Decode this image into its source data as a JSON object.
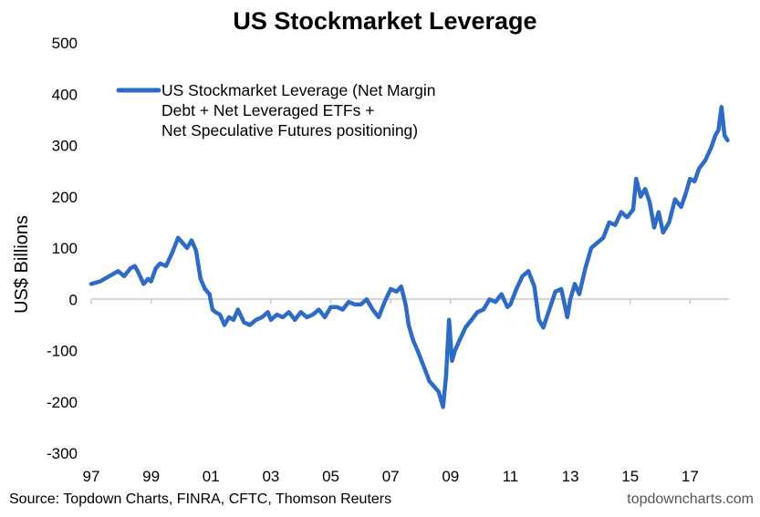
{
  "chart_data": {
    "type": "line",
    "title": "US Stockmarket Leverage",
    "ylabel": "US$ Billions",
    "xlabel": "",
    "ylim": [
      -300,
      500
    ],
    "yticks": [
      "500",
      "400",
      "300",
      "200",
      "100",
      "0",
      "-100",
      "-200",
      "-300"
    ],
    "xlim": [
      1997.0,
      2018.3
    ],
    "xticks": [
      "97",
      "99",
      "01",
      "03",
      "05",
      "07",
      "09",
      "11",
      "13",
      "15",
      "17"
    ],
    "grid": false,
    "legend_position": "top-left",
    "source": "Source: Topdown Charts, FINRA, CFTC, Thomson Reuters",
    "watermark": "topdowncharts.com",
    "series": [
      {
        "name": "US Stockmarket Leverage (Net Margin Debt + Net Leveraged ETFs + Net Speculative Futures positioning)",
        "color": "#2e6bc5",
        "x": [
          1997.0,
          1997.3,
          1997.6,
          1997.9,
          1998.1,
          1998.3,
          1998.45,
          1998.55,
          1998.75,
          1998.9,
          1999.0,
          1999.15,
          1999.3,
          1999.5,
          1999.7,
          1999.9,
          2000.05,
          2000.2,
          2000.35,
          2000.5,
          2000.65,
          2000.8,
          2000.95,
          2001.05,
          2001.15,
          2001.3,
          2001.45,
          2001.6,
          2001.75,
          2001.9,
          2002.1,
          2002.3,
          2002.5,
          2002.7,
          2002.9,
          2003.0,
          2003.2,
          2003.4,
          2003.6,
          2003.8,
          2004.0,
          2004.2,
          2004.4,
          2004.6,
          2004.8,
          2005.0,
          2005.2,
          2005.4,
          2005.6,
          2005.8,
          2006.0,
          2006.2,
          2006.4,
          2006.6,
          2006.8,
          2007.0,
          2007.2,
          2007.35,
          2007.5,
          2007.6,
          2007.75,
          2007.9,
          2008.1,
          2008.3,
          2008.45,
          2008.6,
          2008.75,
          2008.85,
          2008.95,
          2009.05,
          2009.15,
          2009.3,
          2009.5,
          2009.7,
          2009.9,
          2010.1,
          2010.3,
          2010.5,
          2010.7,
          2010.9,
          2011.0,
          2011.2,
          2011.4,
          2011.6,
          2011.7,
          2011.8,
          2011.95,
          2012.1,
          2012.3,
          2012.5,
          2012.7,
          2012.9,
          2013.0,
          2013.15,
          2013.3,
          2013.5,
          2013.7,
          2013.9,
          2014.1,
          2014.3,
          2014.5,
          2014.7,
          2014.9,
          2015.1,
          2015.2,
          2015.35,
          2015.5,
          2015.65,
          2015.8,
          2015.95,
          2016.1,
          2016.3,
          2016.5,
          2016.7,
          2016.85,
          2017.0,
          2017.15,
          2017.3,
          2017.5,
          2017.7,
          2017.85,
          2017.95,
          2018.05,
          2018.15,
          2018.25
        ],
        "values": [
          30,
          35,
          45,
          55,
          45,
          60,
          65,
          55,
          30,
          40,
          35,
          60,
          70,
          65,
          90,
          120,
          110,
          100,
          115,
          95,
          40,
          20,
          10,
          -20,
          -25,
          -30,
          -50,
          -35,
          -40,
          -20,
          -45,
          -50,
          -40,
          -35,
          -25,
          -40,
          -30,
          -35,
          -25,
          -40,
          -25,
          -35,
          -30,
          -20,
          -35,
          -15,
          -15,
          -20,
          -5,
          -10,
          -10,
          0,
          -20,
          -35,
          -5,
          20,
          15,
          25,
          -10,
          -50,
          -80,
          -100,
          -130,
          -160,
          -170,
          -180,
          -210,
          -150,
          -40,
          -120,
          -100,
          -80,
          -55,
          -40,
          -25,
          -20,
          0,
          -5,
          10,
          -15,
          -10,
          20,
          45,
          55,
          40,
          25,
          -40,
          -55,
          -20,
          15,
          20,
          -35,
          0,
          30,
          10,
          60,
          100,
          110,
          120,
          150,
          145,
          170,
          160,
          175,
          235,
          200,
          215,
          190,
          140,
          170,
          130,
          150,
          195,
          180,
          205,
          235,
          230,
          255,
          270,
          295,
          320,
          330,
          375,
          320,
          310
        ]
      }
    ]
  }
}
